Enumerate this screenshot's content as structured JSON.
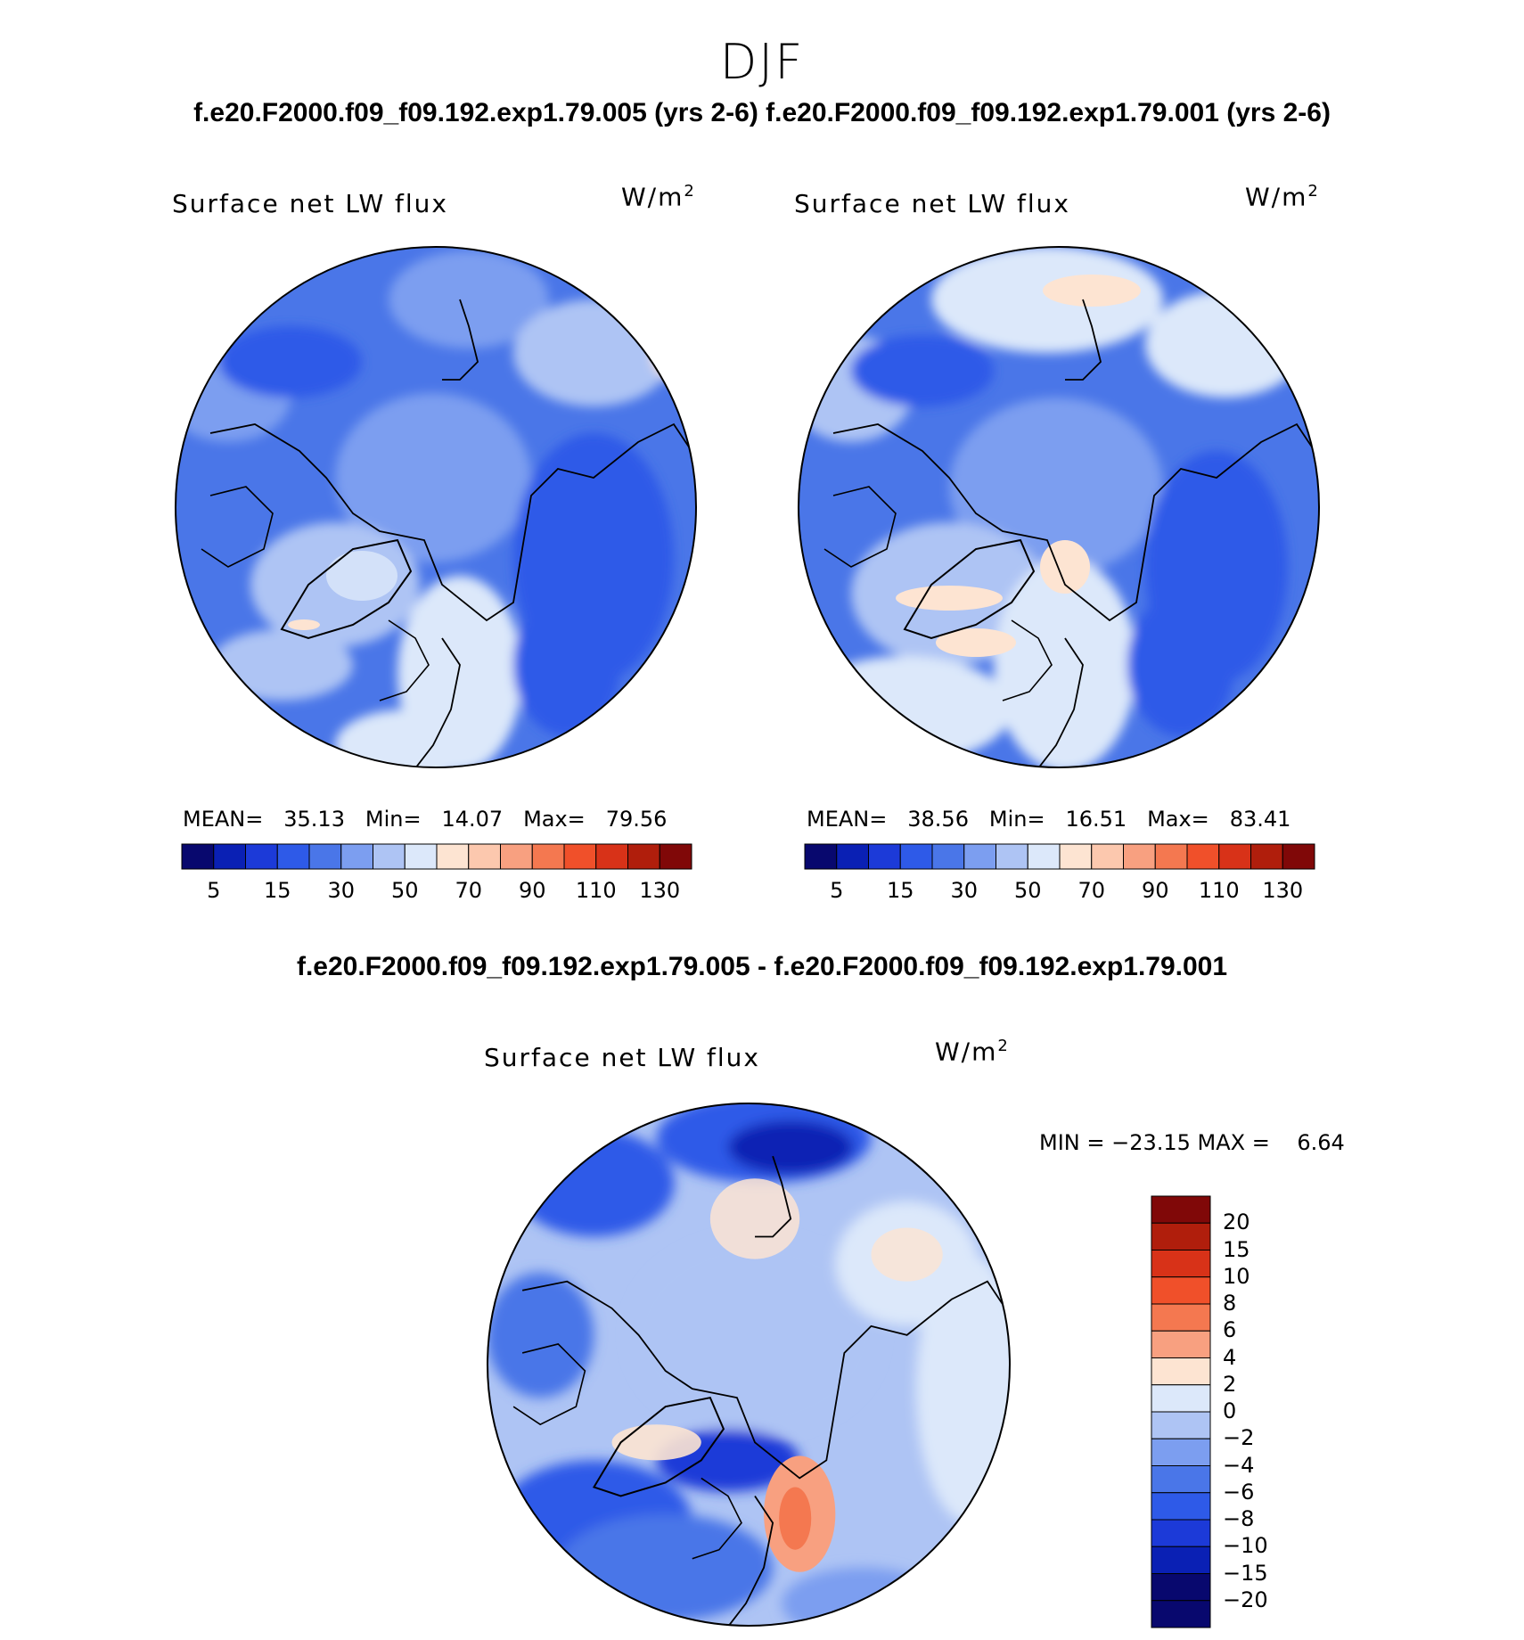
{
  "season": "DJF",
  "top_title_left": "f.e20.F2000.f09_f09.192.exp1.79.005 (yrs 2-6)",
  "top_title_right": "f.e20.F2000.f09_f09.192.exp1.79.001 (yrs 2-6)",
  "diff_title": "f.e20.F2000.f09_f09.192.exp1.79.005 - f.e20.F2000.f09_f09.192.exp1.79.001",
  "panels": [
    {
      "variable": "Surface net LW flux",
      "units_base": "W/m",
      "units_exp": "2",
      "mean_label": "MEAN=",
      "mean_value": "35.13",
      "min_label": "Min=",
      "min_value": "14.07",
      "max_label": "Max=",
      "max_value": "79.56"
    },
    {
      "variable": "Surface net LW flux",
      "units_base": "W/m",
      "units_exp": "2",
      "mean_label": "MEAN=",
      "mean_value": "38.56",
      "min_label": "Min=",
      "min_value": "16.51",
      "max_label": "Max=",
      "max_value": "83.41"
    }
  ],
  "diff_panel": {
    "variable": "Surface net LW flux",
    "units_base": "W/m",
    "units_exp": "2",
    "minmax_text": "MIN = −23.15 MAX =    6.64"
  },
  "colorbar_abs": {
    "colors": [
      "#08086e",
      "#0a20b4",
      "#1c3ad8",
      "#2e5ae8",
      "#4a76e8",
      "#7c9ef0",
      "#aec4f4",
      "#dcE8fa",
      "#fde4d2",
      "#fcc8ae",
      "#f8a080",
      "#f47850",
      "#f0502a",
      "#d83218",
      "#b01e0c",
      "#800808"
    ],
    "labels": [
      "5",
      "15",
      "30",
      "50",
      "70",
      "90",
      "110",
      "130"
    ]
  },
  "colorbar_diff": {
    "colors": [
      "#800808",
      "#b01e0c",
      "#d83218",
      "#f0502a",
      "#f47850",
      "#f8a080",
      "#fde4d2",
      "#dce8fa",
      "#aec4f4",
      "#7c9ef0",
      "#4a76e8",
      "#2e5ae8",
      "#1c3ad8",
      "#0a20b4",
      "#08086e"
    ],
    "labels": [
      "20",
      "15",
      "10",
      "8",
      "6",
      "4",
      "2",
      "0",
      "−2",
      "−4",
      "−6",
      "−8",
      "−10",
      "−15",
      "−20"
    ]
  }
}
